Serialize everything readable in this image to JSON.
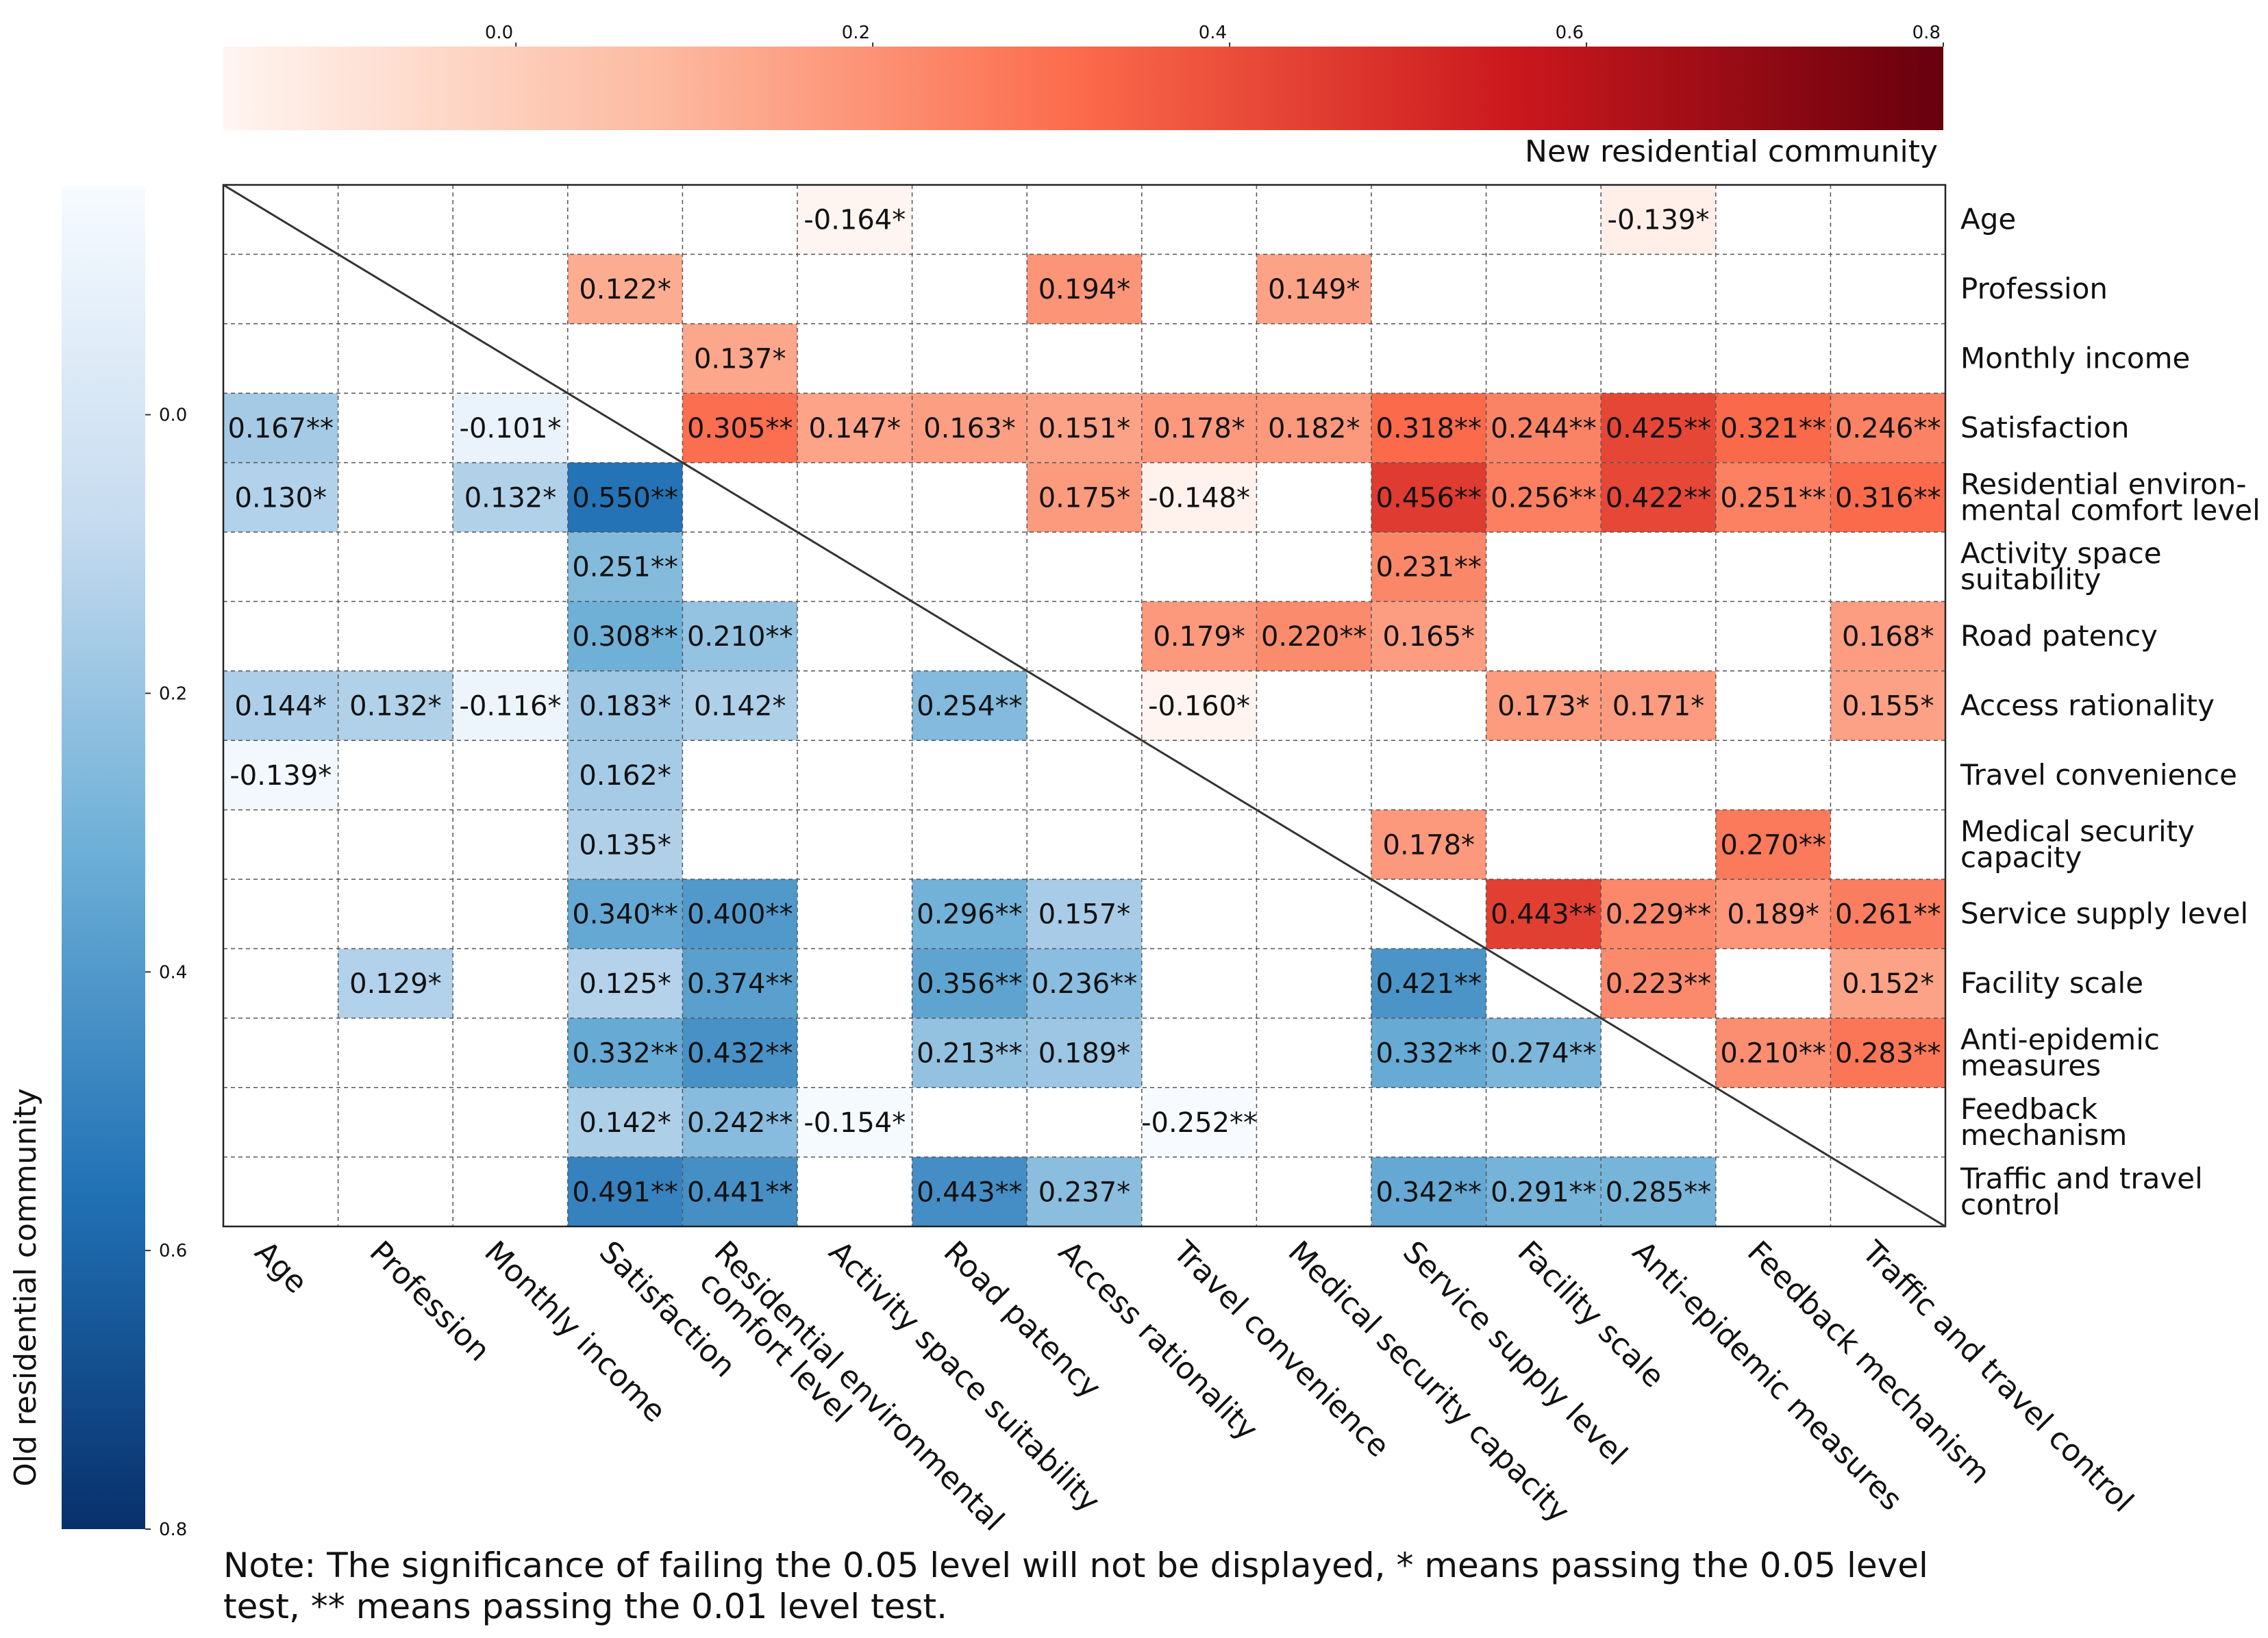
{
  "chart_data": {
    "type": "heatmap",
    "upper_colorbar": {
      "title": "New residential community",
      "ticks": [
        "0.0",
        "0.2",
        "0.4",
        "0.6",
        "0.8"
      ],
      "range": [
        -0.164,
        0.8
      ],
      "colors": [
        "#fff5f0",
        "#fcbba1",
        "#fb6a4a",
        "#cb181d",
        "#67000d"
      ]
    },
    "lower_colorbar": {
      "title": "Old residential community",
      "ticks": [
        "0.0",
        "0.2",
        "0.4",
        "0.6",
        "0.8"
      ],
      "range": [
        -0.164,
        0.8
      ],
      "colors": [
        "#f7fbff",
        "#c6dbef",
        "#6baed6",
        "#2171b5",
        "#08306b"
      ]
    },
    "row_labels": [
      [
        "Age"
      ],
      [
        "Profession"
      ],
      [
        "Monthly income"
      ],
      [
        "Satisfaction"
      ],
      [
        "Residential environ-",
        "mental comfort level"
      ],
      [
        "Activity space",
        "suitability"
      ],
      [
        "Road patency"
      ],
      [
        "Access rationality"
      ],
      [
        "Travel convenience"
      ],
      [
        "Medical security",
        "capacity"
      ],
      [
        "Service supply level"
      ],
      [
        "Facility scale"
      ],
      [
        "Anti-epidemic",
        "measures"
      ],
      [
        "Feedback",
        "mechanism"
      ],
      [
        "Traffic and travel",
        "control"
      ]
    ],
    "column_labels": [
      [
        "Age"
      ],
      [
        "Profession"
      ],
      [
        "Monthly income"
      ],
      [
        "Satisfaction"
      ],
      [
        "Residential environmental",
        "comfort level"
      ],
      [
        "Activity space suitability"
      ],
      [
        "Road patency"
      ],
      [
        "Access rationality"
      ],
      [
        "Travel convenience"
      ],
      [
        "Medical security capacity"
      ],
      [
        "Service supply level"
      ],
      [
        "Facility scale"
      ],
      [
        "Anti-epidemic measures"
      ],
      [
        "Feedback mechanism"
      ],
      [
        "Traffic and travel control"
      ]
    ],
    "cells": [
      {
        "row": 0,
        "col": 5,
        "value": -0.164,
        "label": "-0.164*",
        "community": "new"
      },
      {
        "row": 0,
        "col": 12,
        "value": -0.139,
        "label": "-0.139*",
        "community": "new"
      },
      {
        "row": 1,
        "col": 3,
        "value": 0.122,
        "label": "0.122*",
        "community": "new"
      },
      {
        "row": 1,
        "col": 7,
        "value": 0.194,
        "label": "0.194*",
        "community": "new"
      },
      {
        "row": 1,
        "col": 9,
        "value": 0.149,
        "label": "0.149*",
        "community": "new"
      },
      {
        "row": 2,
        "col": 4,
        "value": 0.137,
        "label": "0.137*",
        "community": "new"
      },
      {
        "row": 3,
        "col": 0,
        "value": 0.167,
        "label": "0.167**",
        "community": "old"
      },
      {
        "row": 3,
        "col": 2,
        "value": -0.101,
        "label": "-0.101*",
        "community": "old"
      },
      {
        "row": 3,
        "col": 4,
        "value": 0.305,
        "label": "0.305**",
        "community": "new"
      },
      {
        "row": 3,
        "col": 5,
        "value": 0.147,
        "label": "0.147*",
        "community": "new"
      },
      {
        "row": 3,
        "col": 6,
        "value": 0.163,
        "label": "0.163*",
        "community": "new"
      },
      {
        "row": 3,
        "col": 7,
        "value": 0.151,
        "label": "0.151*",
        "community": "new"
      },
      {
        "row": 3,
        "col": 8,
        "value": 0.178,
        "label": "0.178*",
        "community": "new"
      },
      {
        "row": 3,
        "col": 9,
        "value": 0.182,
        "label": "0.182*",
        "community": "new"
      },
      {
        "row": 3,
        "col": 10,
        "value": 0.318,
        "label": "0.318**",
        "community": "new"
      },
      {
        "row": 3,
        "col": 11,
        "value": 0.244,
        "label": "0.244**",
        "community": "new"
      },
      {
        "row": 3,
        "col": 12,
        "value": 0.425,
        "label": "0.425**",
        "community": "new"
      },
      {
        "row": 3,
        "col": 13,
        "value": 0.321,
        "label": "0.321**",
        "community": "new"
      },
      {
        "row": 3,
        "col": 14,
        "value": 0.246,
        "label": "0.246**",
        "community": "new"
      },
      {
        "row": 4,
        "col": 0,
        "value": 0.13,
        "label": "0.130*",
        "community": "old"
      },
      {
        "row": 4,
        "col": 2,
        "value": 0.132,
        "label": "0.132*",
        "community": "old"
      },
      {
        "row": 4,
        "col": 3,
        "value": 0.55,
        "label": "0.550**",
        "community": "old"
      },
      {
        "row": 4,
        "col": 7,
        "value": 0.175,
        "label": "0.175*",
        "community": "new"
      },
      {
        "row": 4,
        "col": 8,
        "value": -0.148,
        "label": "-0.148*",
        "community": "new"
      },
      {
        "row": 4,
        "col": 10,
        "value": 0.456,
        "label": "0.456**",
        "community": "new"
      },
      {
        "row": 4,
        "col": 11,
        "value": 0.256,
        "label": "0.256**",
        "community": "new"
      },
      {
        "row": 4,
        "col": 12,
        "value": 0.422,
        "label": "0.422**",
        "community": "new"
      },
      {
        "row": 4,
        "col": 13,
        "value": 0.251,
        "label": "0.251**",
        "community": "new"
      },
      {
        "row": 4,
        "col": 14,
        "value": 0.316,
        "label": "0.316**",
        "community": "new"
      },
      {
        "row": 5,
        "col": 3,
        "value": 0.251,
        "label": "0.251**",
        "community": "old"
      },
      {
        "row": 5,
        "col": 10,
        "value": 0.231,
        "label": "0.231**",
        "community": "new"
      },
      {
        "row": 6,
        "col": 3,
        "value": 0.308,
        "label": "0.308**",
        "community": "old"
      },
      {
        "row": 6,
        "col": 4,
        "value": 0.21,
        "label": "0.210**",
        "community": "old"
      },
      {
        "row": 6,
        "col": 8,
        "value": 0.179,
        "label": "0.179*",
        "community": "new"
      },
      {
        "row": 6,
        "col": 9,
        "value": 0.22,
        "label": "0.220**",
        "community": "new"
      },
      {
        "row": 6,
        "col": 10,
        "value": 0.165,
        "label": "0.165*",
        "community": "new"
      },
      {
        "row": 6,
        "col": 14,
        "value": 0.168,
        "label": "0.168*",
        "community": "new"
      },
      {
        "row": 7,
        "col": 0,
        "value": 0.144,
        "label": "0.144*",
        "community": "old"
      },
      {
        "row": 7,
        "col": 1,
        "value": 0.132,
        "label": "0.132*",
        "community": "old"
      },
      {
        "row": 7,
        "col": 2,
        "value": -0.116,
        "label": "-0.116*",
        "community": "old"
      },
      {
        "row": 7,
        "col": 3,
        "value": 0.183,
        "label": "0.183*",
        "community": "old"
      },
      {
        "row": 7,
        "col": 4,
        "value": 0.142,
        "label": "0.142*",
        "community": "old"
      },
      {
        "row": 7,
        "col": 6,
        "value": 0.254,
        "label": "0.254**",
        "community": "old"
      },
      {
        "row": 7,
        "col": 8,
        "value": -0.16,
        "label": "-0.160*",
        "community": "new"
      },
      {
        "row": 7,
        "col": 11,
        "value": 0.173,
        "label": "0.173*",
        "community": "new"
      },
      {
        "row": 7,
        "col": 12,
        "value": 0.171,
        "label": "0.171*",
        "community": "new"
      },
      {
        "row": 7,
        "col": 14,
        "value": 0.155,
        "label": "0.155*",
        "community": "new"
      },
      {
        "row": 8,
        "col": 0,
        "value": -0.139,
        "label": "-0.139*",
        "community": "old"
      },
      {
        "row": 8,
        "col": 3,
        "value": 0.162,
        "label": "0.162*",
        "community": "old"
      },
      {
        "row": 9,
        "col": 3,
        "value": 0.135,
        "label": "0.135*",
        "community": "old"
      },
      {
        "row": 9,
        "col": 10,
        "value": 0.178,
        "label": "0.178*",
        "community": "new"
      },
      {
        "row": 9,
        "col": 13,
        "value": 0.27,
        "label": "0.270**",
        "community": "new"
      },
      {
        "row": 10,
        "col": 3,
        "value": 0.34,
        "label": "0.340**",
        "community": "old"
      },
      {
        "row": 10,
        "col": 4,
        "value": 0.4,
        "label": "0.400**",
        "community": "old"
      },
      {
        "row": 10,
        "col": 6,
        "value": 0.296,
        "label": "0.296**",
        "community": "old"
      },
      {
        "row": 10,
        "col": 7,
        "value": 0.157,
        "label": "0.157*",
        "community": "old"
      },
      {
        "row": 10,
        "col": 11,
        "value": 0.443,
        "label": "0.443**",
        "community": "new"
      },
      {
        "row": 10,
        "col": 12,
        "value": 0.229,
        "label": "0.229**",
        "community": "new"
      },
      {
        "row": 10,
        "col": 13,
        "value": 0.189,
        "label": "0.189*",
        "community": "new"
      },
      {
        "row": 10,
        "col": 14,
        "value": 0.261,
        "label": "0.261**",
        "community": "new"
      },
      {
        "row": 11,
        "col": 1,
        "value": 0.129,
        "label": "0.129*",
        "community": "old"
      },
      {
        "row": 11,
        "col": 3,
        "value": 0.125,
        "label": "0.125*",
        "community": "old"
      },
      {
        "row": 11,
        "col": 4,
        "value": 0.374,
        "label": "0.374**",
        "community": "old"
      },
      {
        "row": 11,
        "col": 6,
        "value": 0.356,
        "label": "0.356**",
        "community": "old"
      },
      {
        "row": 11,
        "col": 7,
        "value": 0.236,
        "label": "0.236**",
        "community": "old"
      },
      {
        "row": 11,
        "col": 10,
        "value": 0.421,
        "label": "0.421**",
        "community": "old"
      },
      {
        "row": 11,
        "col": 12,
        "value": 0.223,
        "label": "0.223**",
        "community": "new"
      },
      {
        "row": 11,
        "col": 14,
        "value": 0.152,
        "label": "0.152*",
        "community": "new"
      },
      {
        "row": 12,
        "col": 3,
        "value": 0.332,
        "label": "0.332**",
        "community": "old"
      },
      {
        "row": 12,
        "col": 4,
        "value": 0.432,
        "label": "0.432**",
        "community": "old"
      },
      {
        "row": 12,
        "col": 6,
        "value": 0.213,
        "label": "0.213**",
        "community": "old"
      },
      {
        "row": 12,
        "col": 7,
        "value": 0.189,
        "label": "0.189*",
        "community": "old"
      },
      {
        "row": 12,
        "col": 10,
        "value": 0.332,
        "label": "0.332**",
        "community": "old"
      },
      {
        "row": 12,
        "col": 11,
        "value": 0.274,
        "label": "0.274**",
        "community": "old"
      },
      {
        "row": 12,
        "col": 13,
        "value": 0.21,
        "label": "0.210**",
        "community": "new"
      },
      {
        "row": 12,
        "col": 14,
        "value": 0.283,
        "label": "0.283**",
        "community": "new"
      },
      {
        "row": 13,
        "col": 3,
        "value": 0.142,
        "label": "0.142*",
        "community": "old"
      },
      {
        "row": 13,
        "col": 4,
        "value": 0.242,
        "label": "0.242**",
        "community": "old"
      },
      {
        "row": 13,
        "col": 5,
        "value": -0.154,
        "label": "-0.154*",
        "community": "old"
      },
      {
        "row": 13,
        "col": 8,
        "value": -0.252,
        "label": "-0.252**",
        "community": "old"
      },
      {
        "row": 14,
        "col": 3,
        "value": 0.491,
        "label": "0.491**",
        "community": "old"
      },
      {
        "row": 14,
        "col": 4,
        "value": 0.441,
        "label": "0.441**",
        "community": "old"
      },
      {
        "row": 14,
        "col": 6,
        "value": 0.443,
        "label": "0.443**",
        "community": "old"
      },
      {
        "row": 14,
        "col": 7,
        "value": 0.237,
        "label": "0.237*",
        "community": "old"
      },
      {
        "row": 14,
        "col": 10,
        "value": 0.342,
        "label": "0.342**",
        "community": "old"
      },
      {
        "row": 14,
        "col": 11,
        "value": 0.291,
        "label": "0.291**",
        "community": "old"
      },
      {
        "row": 14,
        "col": 12,
        "value": 0.285,
        "label": "0.285**",
        "community": "old"
      }
    ],
    "note": [
      "Note: The significance of failing the 0.05 level will not be displayed, * means passing the 0.05 level",
      "test, ** means passing the 0.01 level test."
    ]
  }
}
